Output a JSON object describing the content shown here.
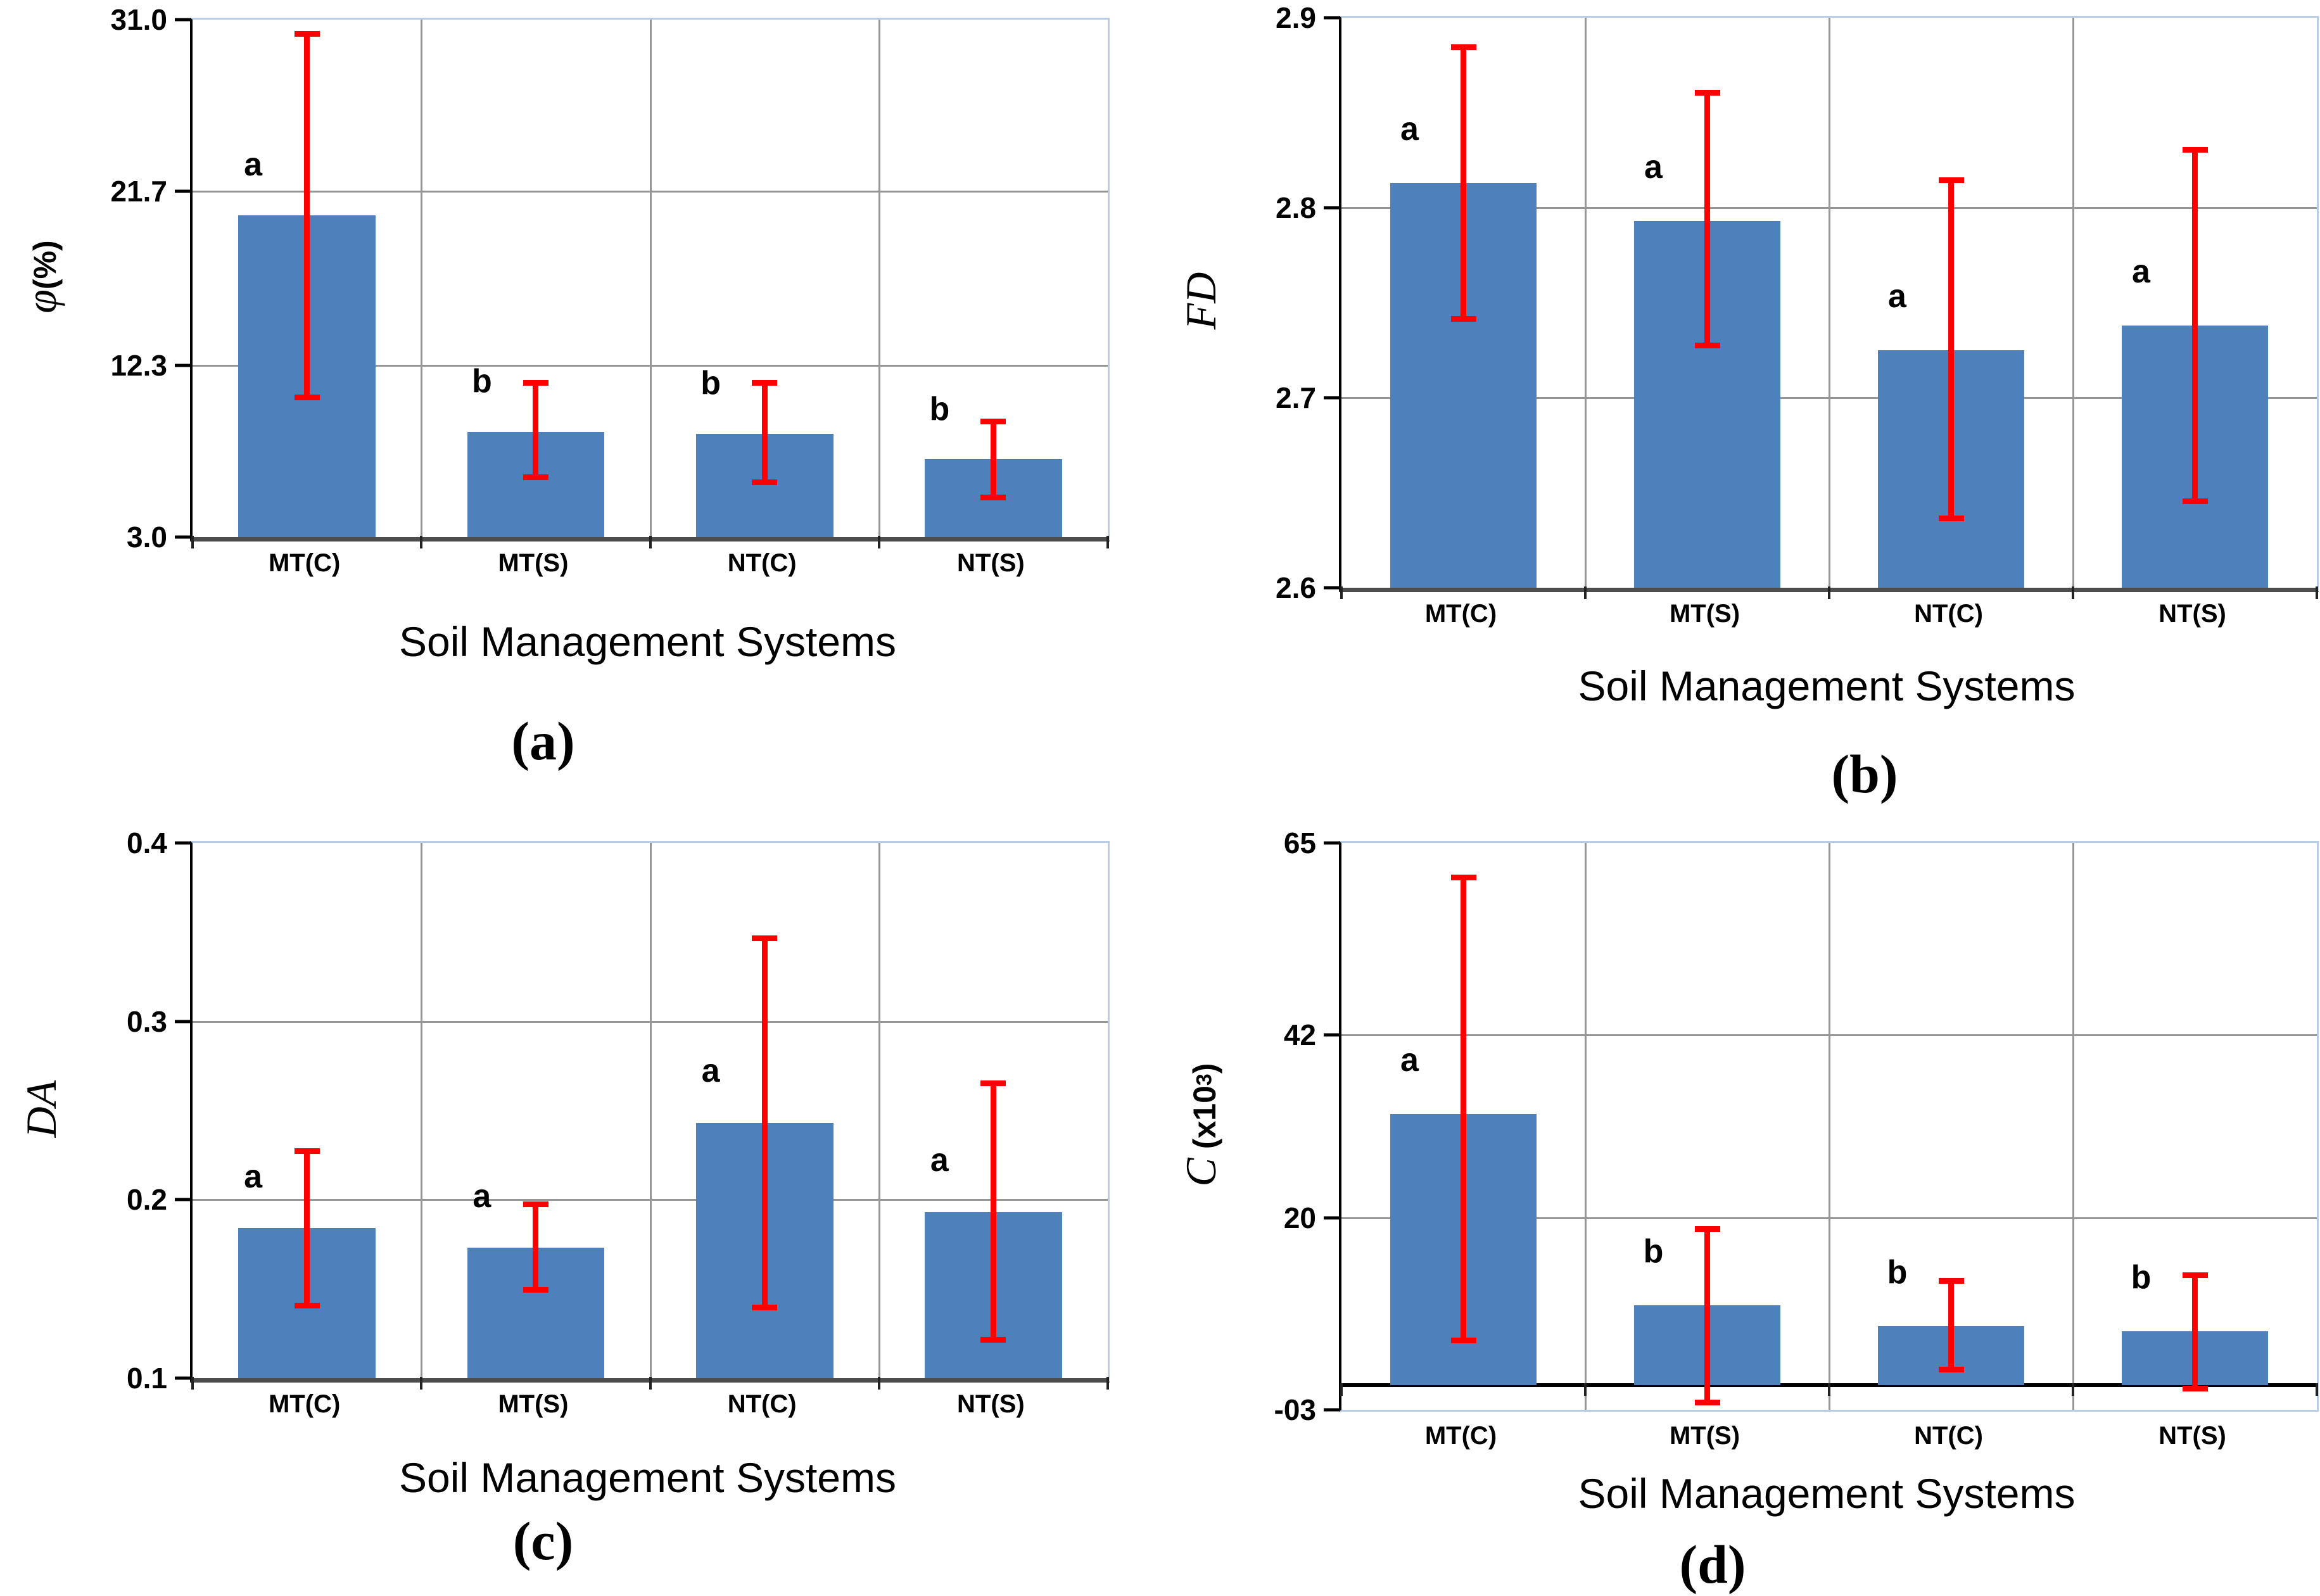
{
  "styles": {
    "bar_fill": "#4E80BC",
    "error_bar_color": "#FE0000",
    "gridline_color": "#969696",
    "plot_border_color": "#B8CCE4",
    "axis_color": "#4D4D4D"
  },
  "chart_data": [
    {
      "id": "a",
      "type": "bar",
      "panel_label": "(a)",
      "xlabel": "Soil Management Systems",
      "ylabel": {
        "italic": "φ",
        "text": "(%)"
      },
      "ylim": [
        3.0,
        31.0
      ],
      "yticks": [
        "31.0",
        "21.7",
        "12.3",
        "3.0"
      ],
      "bar_base": 3.0,
      "axis_at": 3.0,
      "grid": true,
      "legend": null,
      "categories": [
        "MT(C)",
        "MT(S)",
        "NT(C)",
        "NT(S)"
      ],
      "values": [
        20.4,
        8.7,
        8.6,
        7.2
      ],
      "error_low": [
        10.4,
        6.1,
        5.8,
        5.0
      ],
      "error_high": [
        30.4,
        11.5,
        11.5,
        9.4
      ],
      "sig_letters": [
        "a",
        "b",
        "b",
        "b"
      ]
    },
    {
      "id": "b",
      "type": "bar",
      "panel_label": "(b)",
      "xlabel": "Soil Management Systems",
      "ylabel": {
        "italic": "FD"
      },
      "ylim": [
        2.6,
        2.9
      ],
      "yticks": [
        "2.9",
        "2.8",
        "2.7",
        "2.6"
      ],
      "bar_base": 2.6,
      "axis_at": 2.6,
      "grid": true,
      "legend": null,
      "categories": [
        "MT(C)",
        "MT(S)",
        "NT(C)",
        "NT(S)"
      ],
      "values": [
        2.813,
        2.793,
        2.725,
        2.738
      ],
      "error_low": [
        2.74,
        2.726,
        2.635,
        2.644
      ],
      "error_high": [
        2.886,
        2.862,
        2.816,
        2.832
      ],
      "sig_letters": [
        "a",
        "a",
        "a",
        "a"
      ]
    },
    {
      "id": "c",
      "type": "bar",
      "panel_label": "(c)",
      "xlabel": "Soil Management Systems",
      "ylabel": {
        "italic": "DA"
      },
      "ylim": [
        0.1,
        0.4
      ],
      "yticks": [
        "0.4",
        "0.3",
        "0.2",
        "0.1"
      ],
      "bar_base": 0.1,
      "axis_at": 0.1,
      "grid": true,
      "legend": null,
      "categories": [
        "MT(C)",
        "MT(S)",
        "NT(C)",
        "NT(S)"
      ],
      "values": [
        0.184,
        0.173,
        0.243,
        0.193
      ],
      "error_low": [
        0.139,
        0.148,
        0.138,
        0.12
      ],
      "error_high": [
        0.229,
        0.199,
        0.348,
        0.267
      ],
      "sig_letters": [
        "a",
        "a",
        "a",
        "a"
      ]
    },
    {
      "id": "d",
      "type": "bar",
      "panel_label": "(d)",
      "xlabel": "Soil Management Systems",
      "ylabel": {
        "italic": "C",
        "text": " (x10",
        "sup": "3",
        "text_after": ")"
      },
      "ylim": [
        -3,
        65
      ],
      "yticks": [
        "65",
        "42",
        "20",
        "-03"
      ],
      "bar_base": 0,
      "axis_at": 0,
      "grid": true,
      "legend": null,
      "categories": [
        "MT(C)",
        "MT(S)",
        "NT(C)",
        "NT(S)"
      ],
      "values": [
        32.5,
        9.5,
        7.0,
        6.4
      ],
      "error_low": [
        5.0,
        -2.5,
        1.5,
        -0.8
      ],
      "error_high": [
        61.2,
        19.0,
        12.8,
        13.5
      ],
      "sig_letters": [
        "a",
        "b",
        "b",
        "b"
      ]
    }
  ]
}
